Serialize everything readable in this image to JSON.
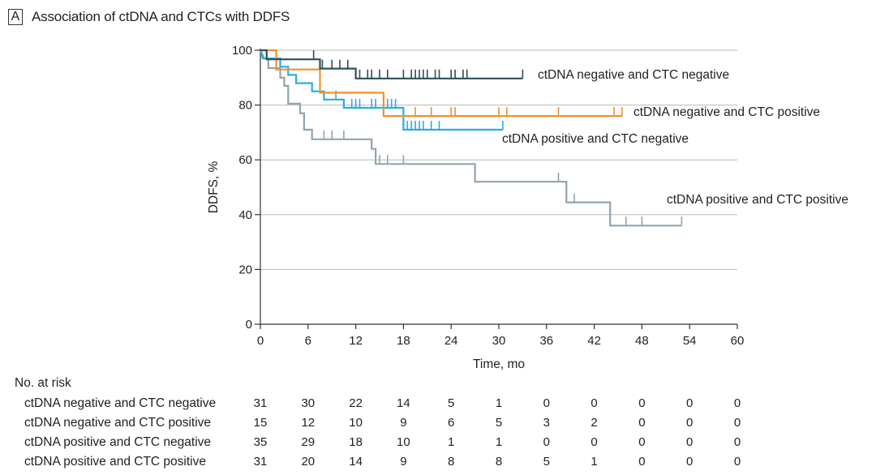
{
  "figure": {
    "panel_letter": "A",
    "title": "Association of ctDNA and CTCs with DDFS"
  },
  "chart_data": {
    "type": "line",
    "subtype": "kaplan-meier",
    "xlabel": "Time, mo",
    "ylabel": "DDFS, %",
    "xlim": [
      0,
      60
    ],
    "ylim": [
      0,
      100
    ],
    "xticks": [
      0,
      6,
      12,
      18,
      24,
      30,
      36,
      42,
      48,
      54,
      60
    ],
    "yticks": [
      0,
      20,
      40,
      60,
      80,
      100
    ],
    "grid": "horizontal",
    "series": [
      {
        "name": "ctDNA negative and CTC negative",
        "color": "#2f4f5a",
        "steps": [
          [
            0,
            100
          ],
          [
            0.8,
            100
          ],
          [
            0.8,
            96.7
          ],
          [
            7.5,
            96.7
          ],
          [
            7.5,
            93.3
          ],
          [
            12,
            93.3
          ],
          [
            12,
            89.7
          ],
          [
            33,
            89.7
          ]
        ],
        "censored": [
          6.7,
          7.8,
          9,
          10,
          11,
          12.5,
          13.5,
          14,
          15,
          16,
          18,
          19,
          19.5,
          20,
          20.5,
          21,
          22,
          22.5,
          24,
          24.5,
          25.5,
          26
        ],
        "end_x": 33
      },
      {
        "name": "ctDNA negative and CTC positive",
        "color": "#f0922b",
        "steps": [
          [
            0,
            100
          ],
          [
            2,
            100
          ],
          [
            2,
            93
          ],
          [
            7.5,
            93
          ],
          [
            7.5,
            84.5
          ],
          [
            15.5,
            84.5
          ],
          [
            15.5,
            76
          ],
          [
            45.5,
            76
          ]
        ],
        "censored": [
          19.5,
          21.5,
          24,
          24.5,
          30,
          31,
          37.5,
          44.5
        ],
        "end_x": 45.5
      },
      {
        "name": "ctDNA positive and CTC negative",
        "color": "#2aace2",
        "steps": [
          [
            0,
            100
          ],
          [
            0.3,
            97
          ],
          [
            2.5,
            97
          ],
          [
            2.5,
            94
          ],
          [
            3.5,
            94
          ],
          [
            3.5,
            91
          ],
          [
            4.5,
            91
          ],
          [
            4.5,
            88
          ],
          [
            6.5,
            88
          ],
          [
            6.5,
            85
          ],
          [
            8,
            85
          ],
          [
            8,
            82
          ],
          [
            10.5,
            82
          ],
          [
            10.5,
            79
          ],
          [
            18,
            79
          ],
          [
            18,
            71
          ],
          [
            30.5,
            71
          ]
        ],
        "censored": [
          7.5,
          9.5,
          11.5,
          12,
          12.5,
          14,
          14.5,
          15.5,
          16,
          16.5,
          17,
          18.5,
          19,
          19.5,
          20,
          20.5,
          21.5,
          22.5
        ],
        "end_x": 30.5
      },
      {
        "name": "ctDNA positive and CTC positive",
        "color": "#8fa5b0",
        "steps": [
          [
            0,
            100
          ],
          [
            0.5,
            97
          ],
          [
            1,
            97
          ],
          [
            1,
            93.5
          ],
          [
            2.5,
            93.5
          ],
          [
            2.5,
            90
          ],
          [
            3,
            90
          ],
          [
            3,
            87
          ],
          [
            3.5,
            87
          ],
          [
            3.5,
            80.5
          ],
          [
            5,
            80.5
          ],
          [
            5,
            77
          ],
          [
            5.5,
            77
          ],
          [
            5.5,
            71
          ],
          [
            6.5,
            71
          ],
          [
            6.5,
            67.5
          ],
          [
            14,
            67.5
          ],
          [
            14,
            64
          ],
          [
            14.5,
            64
          ],
          [
            14.5,
            58.5
          ],
          [
            27,
            58.5
          ],
          [
            27,
            52
          ],
          [
            38.5,
            52
          ],
          [
            38.5,
            44.5
          ],
          [
            44,
            44.5
          ],
          [
            44,
            36
          ],
          [
            53,
            36
          ]
        ],
        "censored": [
          8,
          9,
          10.5,
          15,
          16,
          18,
          37.5,
          39.5,
          46,
          48
        ],
        "end_x": 53
      }
    ],
    "labels": [
      {
        "text": "ctDNA negative and CTC negative",
        "series": 0
      },
      {
        "text": "ctDNA negative and CTC positive",
        "series": 1
      },
      {
        "text": "ctDNA positive and CTC negative",
        "series": 2
      },
      {
        "text": "ctDNA positive and CTC positive",
        "series": 3
      }
    ]
  },
  "risk_table": {
    "heading": "No. at risk",
    "rows": [
      {
        "label": "ctDNA negative and CTC negative",
        "values": [
          "31",
          "30",
          "22",
          "14",
          "5",
          "1",
          "0",
          "0",
          "0",
          "0",
          "0"
        ]
      },
      {
        "label": "ctDNA negative and CTC positive",
        "values": [
          "15",
          "12",
          "10",
          "9",
          "6",
          "5",
          "3",
          "2",
          "0",
          "0",
          "0"
        ]
      },
      {
        "label": "ctDNA positive and CTC negative",
        "values": [
          "35",
          "29",
          "18",
          "10",
          "1",
          "1",
          "0",
          "0",
          "0",
          "0",
          "0"
        ]
      },
      {
        "label": "ctDNA positive and CTC positive",
        "values": [
          "31",
          "20",
          "14",
          "9",
          "8",
          "8",
          "5",
          "1",
          "0",
          "0",
          "0"
        ]
      }
    ]
  }
}
